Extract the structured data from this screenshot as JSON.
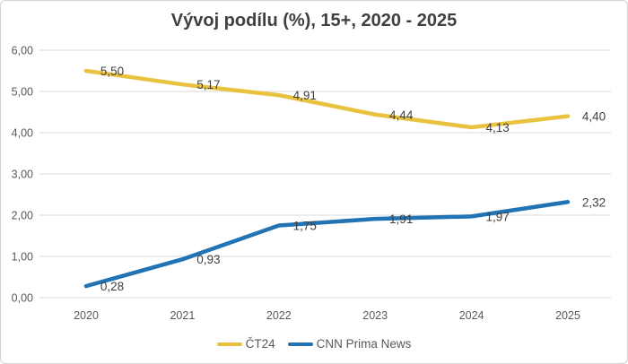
{
  "chart_data": {
    "type": "line",
    "title": "Vývoj podílu (%), 15+, 2020 - 2025",
    "categories": [
      "2020",
      "2021",
      "2022",
      "2023",
      "2024",
      "2025"
    ],
    "series": [
      {
        "name": "ČT24",
        "color": "#e9c23f",
        "values": [
          5.5,
          5.17,
          4.91,
          4.44,
          4.13,
          4.4
        ],
        "value_labels": [
          "5,50",
          "5,17",
          "4,91",
          "4,44",
          "4,13",
          "4,40"
        ]
      },
      {
        "name": "CNN Prima News",
        "color": "#2173b4",
        "values": [
          0.28,
          0.93,
          1.75,
          1.91,
          1.97,
          2.32
        ],
        "value_labels": [
          "0,28",
          "0,93",
          "1,75",
          "1,91",
          "1,97",
          "2,32"
        ]
      }
    ],
    "ylim": [
      0,
      6
    ],
    "ytick_step": 1,
    "ytick_labels": [
      "0,00",
      "1,00",
      "2,00",
      "3,00",
      "4,00",
      "5,00",
      "6,00"
    ],
    "grid": "horizontal",
    "legend_position": "bottom",
    "decimal_separator": ","
  },
  "colors": {
    "title_text": "#404040",
    "axis_label_text": "#595959",
    "data_label_text": "#404040",
    "gridline": "#d9d9d9",
    "frame_border": "#d3d3d3",
    "background": "#ffffff"
  }
}
